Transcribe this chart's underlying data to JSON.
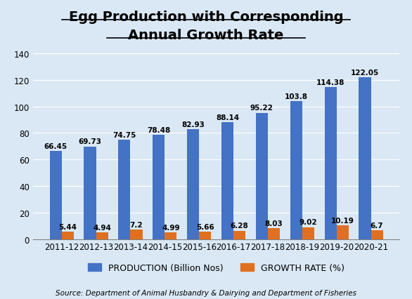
{
  "title_line1": "Egg Production with Corresponding",
  "title_line2": "Annual Growth Rate",
  "categories": [
    "2011-12",
    "2012-13",
    "2013-14",
    "2014-15",
    "2015-16",
    "2016-17",
    "2017-18",
    "2018-19",
    "2019-20",
    "2020-21"
  ],
  "production": [
    66.45,
    69.73,
    74.75,
    78.48,
    82.93,
    88.14,
    95.22,
    103.8,
    114.38,
    122.05
  ],
  "growth_rate": [
    5.44,
    4.94,
    7.2,
    4.99,
    5.66,
    6.28,
    8.03,
    9.02,
    10.19,
    6.7
  ],
  "production_color": "#4472C4",
  "growth_color": "#E07020",
  "background_color": "#DAE8F5",
  "ylim": [
    0,
    140
  ],
  "yticks": [
    0,
    20,
    40,
    60,
    80,
    100,
    120,
    140
  ],
  "legend_production": "PRODUCTION (Billion Nos)",
  "legend_growth": "GROWTH RATE (%)",
  "source_text": "Source: Department of Animal Husbandry & Dairying and Department of Fisheries",
  "title_fontsize": 14,
  "bar_width": 0.35,
  "label_fontsize": 7.5,
  "tick_fontsize": 8.5,
  "legend_fontsize": 9,
  "source_fontsize": 7.5
}
